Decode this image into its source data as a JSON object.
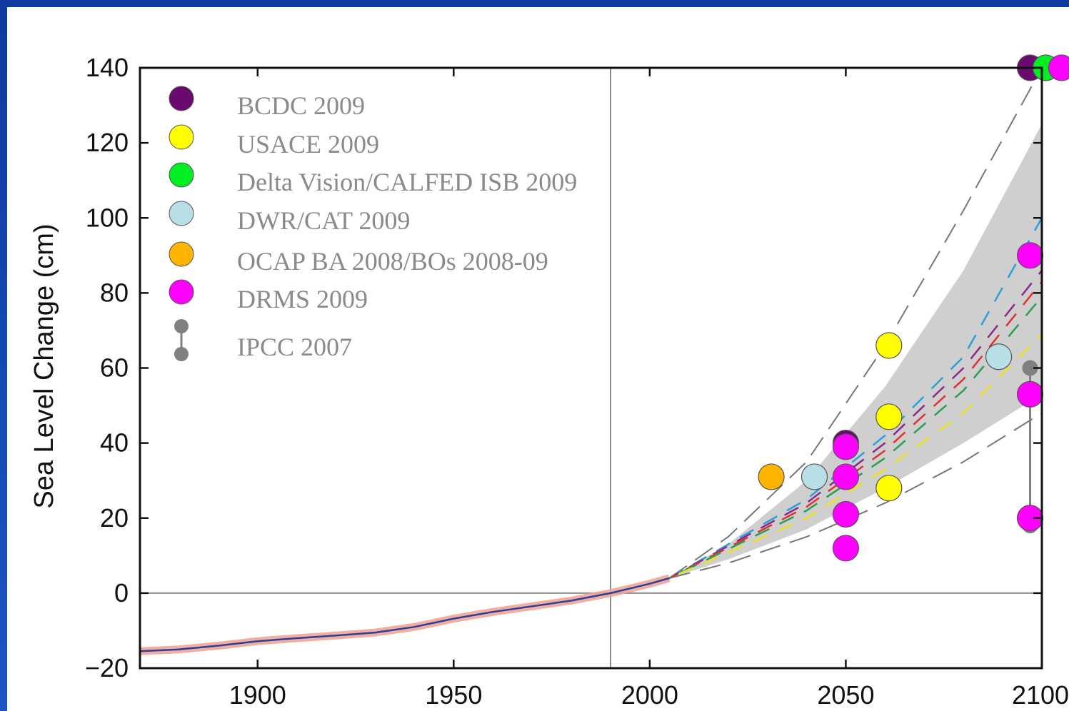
{
  "chart_data": {
    "type": "line",
    "title": "",
    "xlabel": "",
    "ylabel": "Sea Level Change (cm)",
    "xlim": [
      1870,
      2100
    ],
    "ylim": [
      -20,
      140
    ],
    "x_ticks": [
      1900,
      1950,
      2000,
      2050,
      2100
    ],
    "y_ticks": [
      -20,
      0,
      20,
      40,
      60,
      80,
      100,
      120,
      140
    ],
    "reference_line_x": 1990,
    "reference_line_y": 0,
    "grid": false,
    "legend_position": "top-left",
    "legend": [
      {
        "label": "BCDC 2009",
        "color": "#6a0a6e",
        "marker": "circle"
      },
      {
        "label": "USACE 2009",
        "color": "#ffff00",
        "marker": "circle"
      },
      {
        "label": "Delta Vision/CALFED ISB 2009",
        "color": "#00ee22",
        "marker": "circle"
      },
      {
        "label": "DWR/CAT 2009",
        "color": "#b8dfe6",
        "marker": "circle"
      },
      {
        "label": "OCAP BA 2008/BOs 2008-09",
        "color": "#ffb400",
        "marker": "circle"
      },
      {
        "label": "DRMS 2009",
        "color": "#ff00ff",
        "marker": "circle"
      },
      {
        "label": "IPCC 2007",
        "color": "#808080",
        "marker": "range"
      }
    ],
    "observed": {
      "name": "",
      "color": "#2a3f9a",
      "x": [
        1870,
        1880,
        1890,
        1900,
        1910,
        1920,
        1930,
        1940,
        1950,
        1960,
        1970,
        1980,
        1990,
        2000,
        2005
      ],
      "y": [
        -15.5,
        -15,
        -14,
        -12.8,
        -12,
        -11.3,
        -10.5,
        -9,
        -6.8,
        -5,
        -3.5,
        -2,
        0,
        2.5,
        4
      ]
    },
    "projection_band": {
      "x": [
        2005,
        2020,
        2040,
        2060,
        2080,
        2100
      ],
      "lower": [
        4,
        9,
        17,
        28,
        40,
        53
      ],
      "upper": [
        4,
        13,
        30,
        55,
        86,
        125
      ]
    },
    "projection_bounds_dashed": {
      "x": [
        2005,
        2020,
        2040,
        2060,
        2080,
        2100
      ],
      "lower": [
        4,
        8,
        15,
        24,
        35,
        48
      ],
      "upper": [
        4,
        15,
        35,
        66,
        102,
        140
      ]
    },
    "scenario_lines": [
      {
        "color": "#2a9fd8",
        "x": [
          2005,
          2040,
          2060,
          2080,
          2100
        ],
        "y": [
          4,
          25,
          42,
          63,
          100
        ]
      },
      {
        "color": "#8a2a8a",
        "x": [
          2005,
          2040,
          2060,
          2080,
          2100
        ],
        "y": [
          4,
          24,
          40,
          60,
          86
        ]
      },
      {
        "color": "#e03030",
        "x": [
          2005,
          2040,
          2060,
          2080,
          2100
        ],
        "y": [
          4,
          23,
          38,
          57,
          83
        ]
      },
      {
        "color": "#28a050",
        "x": [
          2005,
          2040,
          2060,
          2080,
          2100
        ],
        "y": [
          4,
          22,
          36,
          54,
          79
        ]
      },
      {
        "color": "#f0e020",
        "x": [
          2005,
          2040,
          2060,
          2080,
          2100
        ],
        "y": [
          4,
          20,
          33,
          48,
          69
        ]
      }
    ],
    "points": [
      {
        "source": "BCDC 2009",
        "color": "#6a0a6e",
        "x": 2050,
        "y": 40
      },
      {
        "source": "BCDC 2009",
        "color": "#6a0a6e",
        "x": 2097,
        "y": 140
      },
      {
        "source": "USACE 2009",
        "color": "#ffff00",
        "x": 2061,
        "y": 66
      },
      {
        "source": "USACE 2009",
        "color": "#ffff00",
        "x": 2061,
        "y": 47
      },
      {
        "source": "USACE 2009",
        "color": "#ffff00",
        "x": 2061,
        "y": 28
      },
      {
        "source": "Delta Vision/CALFED ISB 2009",
        "color": "#00ee22",
        "x": 2101,
        "y": 140
      },
      {
        "source": "DWR/CAT 2009",
        "color": "#b8dfe6",
        "x": 2042,
        "y": 31
      },
      {
        "source": "DWR/CAT 2009",
        "color": "#b8dfe6",
        "x": 2089,
        "y": 63
      },
      {
        "source": "OCAP BA 2008/BOs 2008-09",
        "color": "#ffb400",
        "x": 2031,
        "y": 31
      },
      {
        "source": "DRMS 2009",
        "color": "#ff00ff",
        "x": 2050,
        "y": 39
      },
      {
        "source": "DRMS 2009",
        "color": "#ff00ff",
        "x": 2050,
        "y": 31
      },
      {
        "source": "DRMS 2009",
        "color": "#ff00ff",
        "x": 2050,
        "y": 21
      },
      {
        "source": "DRMS 2009",
        "color": "#ff00ff",
        "x": 2050,
        "y": 12
      },
      {
        "source": "DRMS 2009",
        "color": "#ff00ff",
        "x": 2097,
        "y": 90
      },
      {
        "source": "DRMS 2009",
        "color": "#ff00ff",
        "x": 2097,
        "y": 53
      },
      {
        "source": "DRMS 2009",
        "color": "#ff00ff",
        "x": 2097,
        "y": 20
      },
      {
        "source": "DRMS 2009",
        "color": "#ff00ff",
        "x": 2105,
        "y": 140
      }
    ],
    "ipcc_range": {
      "color": "#808080",
      "x": 2097,
      "low": 18,
      "high": 60
    }
  }
}
